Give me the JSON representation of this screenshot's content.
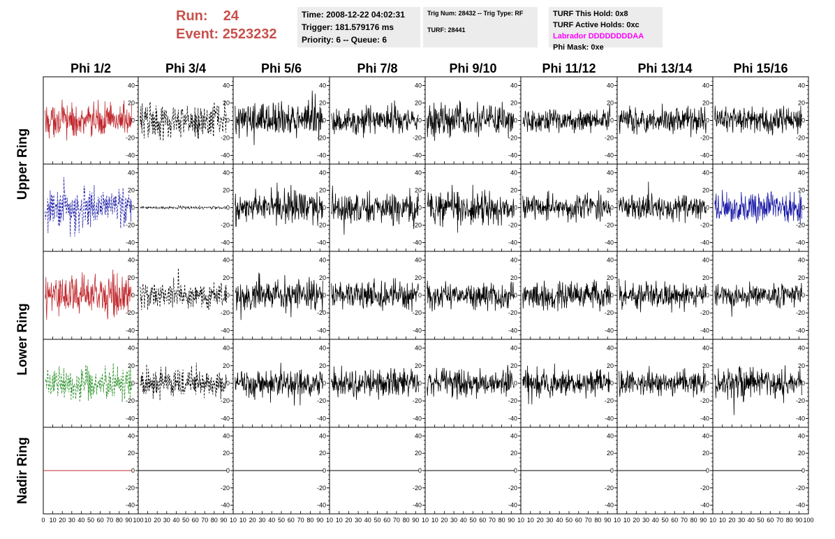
{
  "header": {
    "run_label": "Run:",
    "run_value": "24",
    "event_label": "Event:",
    "event_value": "2523232"
  },
  "info_time": {
    "time": "Time: 2008-12-22 04:02:31",
    "trigger": "Trigger: 181.579176 ms",
    "priority": "Priority: 6 -- Queue: 6"
  },
  "info_trig": {
    "trig": "Trig Num: 28432 -- Trig Type: RF",
    "turf": "TURF: 28441"
  },
  "info_turf": {
    "this_hold": "TURF This Hold: 0x8",
    "active_holds": "TURF Active Holds: 0xc",
    "labrador": "Labrador DDDDDDDDAA",
    "phi_mask": "Phi Mask: 0xe"
  },
  "colors": {
    "red": "#c0282d",
    "blue": "#1c1ca8",
    "green": "#1e8c1e",
    "black": "#000000",
    "header_red": "#c8504b",
    "magenta": "#ff00ff",
    "info_bg": "#ececec"
  },
  "chart_data": {
    "type": "line",
    "columns": [
      "Phi 1/2",
      "Phi 3/4",
      "Phi 5/6",
      "Phi 7/8",
      "Phi 9/10",
      "Phi 11/12",
      "Phi 13/14",
      "Phi 15/16"
    ],
    "rows": [
      "Upper Ring",
      "Upper Ring",
      "Lower Ring",
      "Lower Ring",
      "Nadir Ring"
    ],
    "xlim": [
      0,
      100
    ],
    "ylim": [
      -50,
      50
    ],
    "xticks": [
      0,
      10,
      20,
      30,
      40,
      50,
      60,
      70,
      80,
      90,
      100
    ],
    "xtick_labels_first": [
      "0",
      "10",
      "20",
      "30",
      "40",
      "50",
      "60",
      "70",
      "80",
      "90",
      "100"
    ],
    "xtick_labels_other": [
      "10",
      "20",
      "30",
      "40",
      "50",
      "60",
      "70",
      "80",
      "90",
      "10"
    ],
    "xtick_labels_last": [
      "10",
      "20",
      "30",
      "40",
      "50",
      "60",
      "70",
      "80",
      "90",
      "100"
    ],
    "yticks": [
      -40,
      -20,
      0,
      20,
      40
    ],
    "ytick_labels": [
      "-40",
      "-20",
      "0",
      "20",
      "40"
    ],
    "panels": [
      {
        "row": 0,
        "col": 0,
        "color": "red",
        "style": "solid",
        "amplitude": 22
      },
      {
        "row": 0,
        "col": 1,
        "color": "black",
        "style": "dashed",
        "amplitude": 22
      },
      {
        "row": 0,
        "col": 2,
        "color": "black",
        "style": "solid",
        "amplitude": 22
      },
      {
        "row": 0,
        "col": 3,
        "color": "black",
        "style": "solid",
        "amplitude": 18
      },
      {
        "row": 0,
        "col": 4,
        "color": "black",
        "style": "solid",
        "amplitude": 22
      },
      {
        "row": 0,
        "col": 5,
        "color": "black",
        "style": "solid",
        "amplitude": 15
      },
      {
        "row": 0,
        "col": 6,
        "color": "black",
        "style": "solid",
        "amplitude": 17
      },
      {
        "row": 0,
        "col": 7,
        "color": "black",
        "style": "solid",
        "amplitude": 18
      },
      {
        "row": 1,
        "col": 0,
        "color": "blue",
        "style": "dashed",
        "amplitude": 28
      },
      {
        "row": 1,
        "col": 1,
        "color": "black",
        "style": "dashed",
        "amplitude": 2
      },
      {
        "row": 1,
        "col": 2,
        "color": "black",
        "style": "solid",
        "amplitude": 22
      },
      {
        "row": 1,
        "col": 3,
        "color": "black",
        "style": "solid",
        "amplitude": 22
      },
      {
        "row": 1,
        "col": 4,
        "color": "black",
        "style": "solid",
        "amplitude": 22
      },
      {
        "row": 1,
        "col": 5,
        "color": "black",
        "style": "solid",
        "amplitude": 17
      },
      {
        "row": 1,
        "col": 6,
        "color": "black",
        "style": "solid",
        "amplitude": 17
      },
      {
        "row": 1,
        "col": 7,
        "color": "blue",
        "style": "solid",
        "amplitude": 20
      },
      {
        "row": 2,
        "col": 0,
        "color": "red",
        "style": "solid",
        "amplitude": 26
      },
      {
        "row": 2,
        "col": 1,
        "color": "black",
        "style": "dashed",
        "amplitude": 18
      },
      {
        "row": 2,
        "col": 2,
        "color": "black",
        "style": "solid",
        "amplitude": 22
      },
      {
        "row": 2,
        "col": 3,
        "color": "black",
        "style": "solid",
        "amplitude": 18
      },
      {
        "row": 2,
        "col": 4,
        "color": "black",
        "style": "solid",
        "amplitude": 17
      },
      {
        "row": 2,
        "col": 5,
        "color": "black",
        "style": "solid",
        "amplitude": 18
      },
      {
        "row": 2,
        "col": 6,
        "color": "black",
        "style": "solid",
        "amplitude": 17
      },
      {
        "row": 2,
        "col": 7,
        "color": "black",
        "style": "solid",
        "amplitude": 15
      },
      {
        "row": 3,
        "col": 0,
        "color": "green",
        "style": "dashed",
        "amplitude": 20
      },
      {
        "row": 3,
        "col": 1,
        "color": "black",
        "style": "dashed",
        "amplitude": 18
      },
      {
        "row": 3,
        "col": 2,
        "color": "black",
        "style": "solid",
        "amplitude": 18
      },
      {
        "row": 3,
        "col": 3,
        "color": "black",
        "style": "solid",
        "amplitude": 18
      },
      {
        "row": 3,
        "col": 4,
        "color": "black",
        "style": "solid",
        "amplitude": 18
      },
      {
        "row": 3,
        "col": 5,
        "color": "black",
        "style": "solid",
        "amplitude": 17
      },
      {
        "row": 3,
        "col": 6,
        "color": "black",
        "style": "solid",
        "amplitude": 17
      },
      {
        "row": 3,
        "col": 7,
        "color": "black",
        "style": "solid",
        "amplitude": 20
      },
      {
        "row": 4,
        "col": 0,
        "color": "red",
        "style": "solid",
        "amplitude": 0
      },
      {
        "row": 4,
        "col": 1,
        "color": "black",
        "style": "solid",
        "amplitude": 0
      },
      {
        "row": 4,
        "col": 2,
        "color": "black",
        "style": "solid",
        "amplitude": 0
      },
      {
        "row": 4,
        "col": 3,
        "color": "black",
        "style": "solid",
        "amplitude": 0
      },
      {
        "row": 4,
        "col": 4,
        "color": "black",
        "style": "solid",
        "amplitude": 0
      },
      {
        "row": 4,
        "col": 5,
        "color": "black",
        "style": "solid",
        "amplitude": 0
      },
      {
        "row": 4,
        "col": 6,
        "color": "black",
        "style": "solid",
        "amplitude": 0
      },
      {
        "row": 4,
        "col": 7,
        "color": "black",
        "style": "solid",
        "amplitude": 0
      }
    ]
  }
}
